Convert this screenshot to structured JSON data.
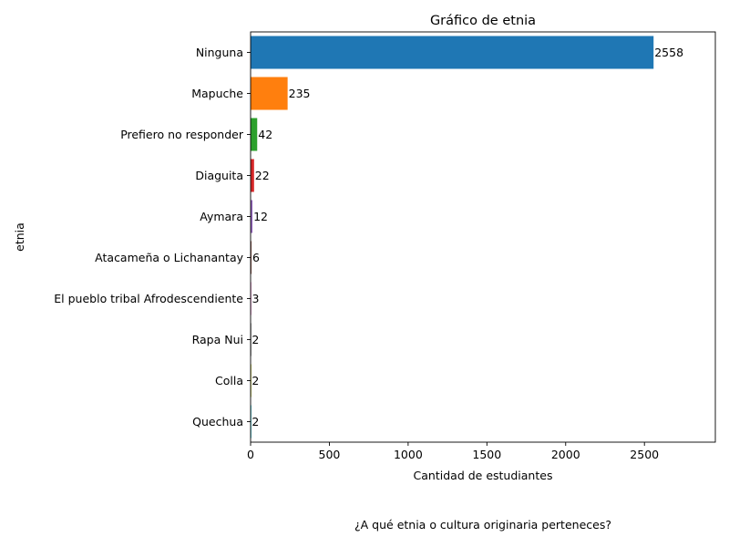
{
  "chart_data": {
    "type": "bar",
    "orientation": "horizontal",
    "title": "Gráfico de etnia",
    "xlabel": "Cantidad de estudiantes",
    "ylabel": "etnia",
    "categories": [
      "Ninguna",
      "Mapuche",
      "Prefiero no responder",
      "Diaguita",
      "Aymara",
      "Atacameña o Lichanantay",
      "El pueblo tribal Afrodescendiente",
      "Rapa Nui",
      "Colla",
      "Quechua"
    ],
    "values": [
      2558,
      235,
      42,
      22,
      12,
      6,
      3,
      2,
      2,
      2
    ],
    "colors": [
      "#1f77b4",
      "#ff7f0e",
      "#2ca02c",
      "#d62728",
      "#9467bd",
      "#8c564b",
      "#e377c2",
      "#7f7f7f",
      "#bcbd22",
      "#17becf"
    ],
    "xlim": [
      0,
      2950
    ],
    "xticks": [
      0,
      500,
      1000,
      1500,
      2000,
      2500
    ],
    "grid": false,
    "legend": "none"
  },
  "caption": "¿A qué etnia o cultura originaria perteneces?"
}
